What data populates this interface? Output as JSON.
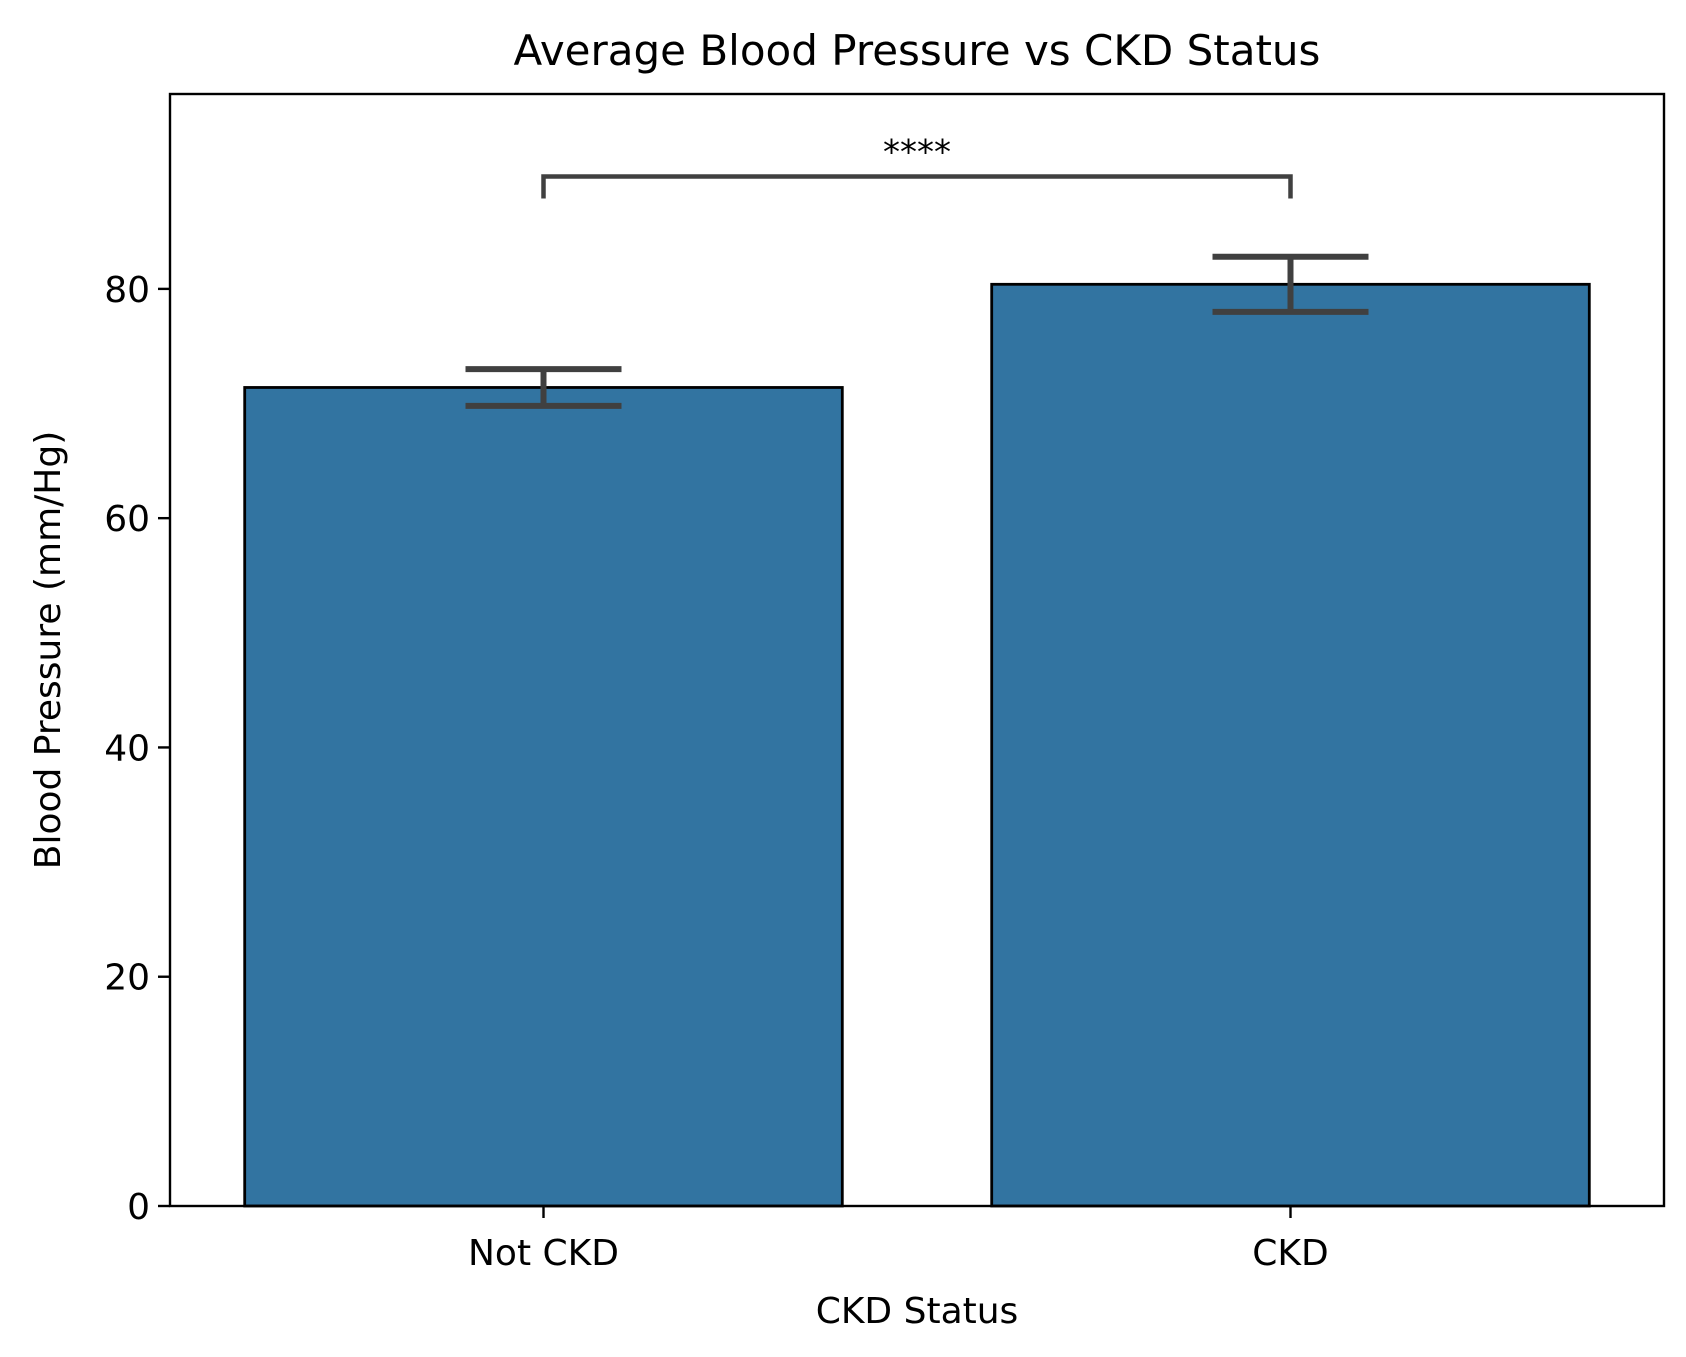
{
  "chart_data": {
    "type": "bar",
    "title": "Average Blood Pressure vs CKD Status",
    "xlabel": "CKD Status",
    "ylabel": "Blood Pressure (mm/Hg)",
    "categories": [
      "Not CKD",
      "CKD"
    ],
    "values": [
      71.4,
      80.4
    ],
    "error_bars": [
      {
        "low": 69.8,
        "high": 73.0
      },
      {
        "low": 78.0,
        "high": 82.8
      }
    ],
    "ylim": [
      0,
      97
    ],
    "yticks": [
      0,
      20,
      40,
      60,
      80
    ],
    "grid": false,
    "bar_color": "#3274a1",
    "error_color": "#404040",
    "significance": {
      "label": "****",
      "between": [
        "Not CKD",
        "CKD"
      ],
      "y": 89.8
    }
  }
}
